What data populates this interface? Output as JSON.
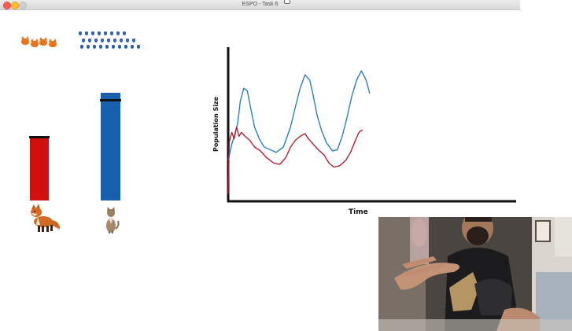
{
  "window": {
    "title": "ESPO - Task 6"
  },
  "predator": {
    "icon": "cat-icon",
    "icon_color": "#e9731c",
    "bar_color": "#d0100f",
    "animal": "fox"
  },
  "prey": {
    "icon": "mouse-icon",
    "icon_color": "#2f5fa8",
    "bar_color": "#1660ad",
    "animal": "cat"
  },
  "chart_data": {
    "type": "line",
    "xlabel": "Time",
    "ylabel": "Population Size",
    "grid": false,
    "legend": "none",
    "series": [
      {
        "color": "#2e7fb8",
        "points": [
          [
            0,
            30
          ],
          [
            3,
            42
          ],
          [
            5,
            48
          ],
          [
            8,
            58
          ],
          [
            10,
            74
          ],
          [
            13,
            84
          ],
          [
            16,
            82
          ],
          [
            19,
            68
          ],
          [
            22,
            55
          ],
          [
            26,
            46
          ],
          [
            30,
            40
          ],
          [
            35,
            38
          ],
          [
            40,
            36
          ],
          [
            46,
            40
          ],
          [
            52,
            55
          ],
          [
            56,
            70
          ],
          [
            60,
            84
          ],
          [
            64,
            94
          ],
          [
            68,
            90
          ],
          [
            71,
            78
          ],
          [
            74,
            64
          ],
          [
            78,
            52
          ],
          [
            82,
            43
          ],
          [
            87,
            37
          ],
          [
            91,
            38
          ],
          [
            95,
            48
          ],
          [
            99,
            62
          ],
          [
            103,
            78
          ],
          [
            107,
            90
          ],
          [
            111,
            97
          ],
          [
            115,
            90
          ],
          [
            118,
            80
          ]
        ]
      },
      {
        "color": "#b42033",
        "points": [
          [
            0,
            5
          ],
          [
            1,
            44
          ],
          [
            3,
            51
          ],
          [
            5,
            46
          ],
          [
            7,
            55
          ],
          [
            9,
            48
          ],
          [
            11,
            51
          ],
          [
            14,
            48
          ],
          [
            18,
            45
          ],
          [
            22,
            40
          ],
          [
            27,
            37
          ],
          [
            32,
            32
          ],
          [
            38,
            28
          ],
          [
            43,
            27
          ],
          [
            48,
            32
          ],
          [
            52,
            40
          ],
          [
            56,
            45
          ],
          [
            60,
            48
          ],
          [
            64,
            50
          ],
          [
            67,
            46
          ],
          [
            71,
            42
          ],
          [
            75,
            38
          ],
          [
            80,
            34
          ],
          [
            84,
            28
          ],
          [
            88,
            25
          ],
          [
            93,
            26
          ],
          [
            98,
            30
          ],
          [
            102,
            36
          ],
          [
            106,
            45
          ],
          [
            109,
            51
          ],
          [
            112,
            53
          ]
        ]
      }
    ]
  },
  "webcam": {
    "label": "webcam-overlay"
  }
}
